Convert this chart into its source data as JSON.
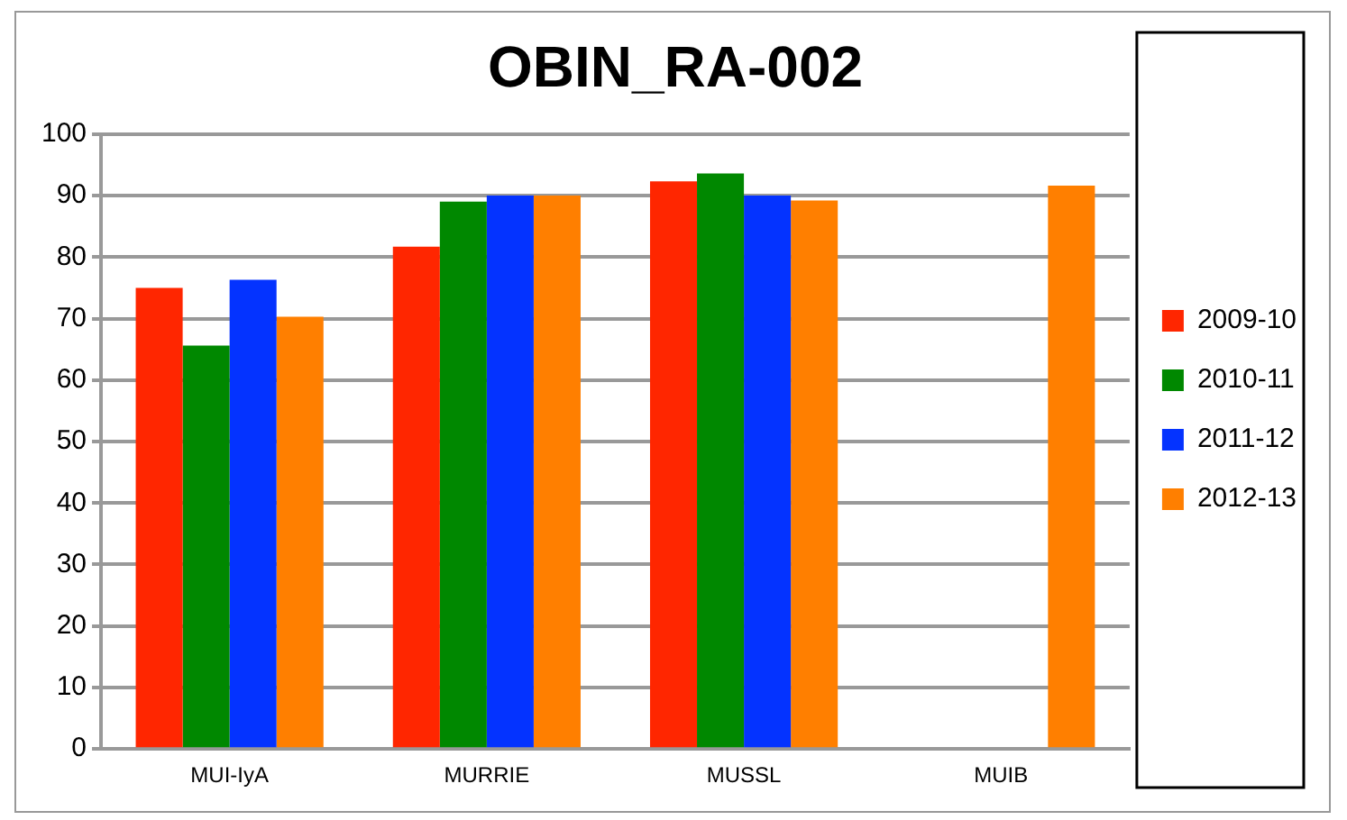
{
  "chart_data": {
    "type": "bar",
    "title": "OBIN_RA-002",
    "categories": [
      "MUI-IyA",
      "MURRIE",
      "MUSSL",
      "MUIB"
    ],
    "series": [
      {
        "name": "2009-10",
        "color": "#ff2600",
        "values": [
          75,
          81.7,
          92.3,
          null
        ]
      },
      {
        "name": "2010-11",
        "color": "#008800",
        "values": [
          65.6,
          89,
          93.6,
          null
        ]
      },
      {
        "name": "2011-12",
        "color": "#0433ff",
        "values": [
          76.3,
          90,
          90,
          null
        ]
      },
      {
        "name": "2012-13",
        "color": "#ff7f00",
        "values": [
          70.3,
          90,
          89.2,
          91.6
        ]
      }
    ],
    "ylim": [
      0,
      100
    ],
    "yticks": [
      0,
      10,
      20,
      30,
      40,
      50,
      60,
      70,
      80,
      90,
      100
    ],
    "grid": "y",
    "legend": "right"
  }
}
